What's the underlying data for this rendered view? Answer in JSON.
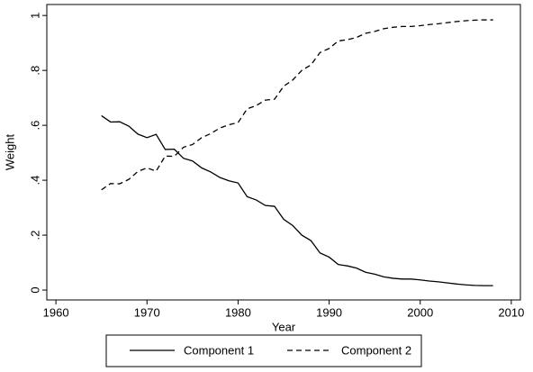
{
  "chart_data": {
    "type": "line",
    "x_label": "Year",
    "y_label": "Weight",
    "x": [
      1965,
      1966,
      1967,
      1968,
      1969,
      1970,
      1971,
      1972,
      1973,
      1974,
      1975,
      1976,
      1977,
      1978,
      1979,
      1980,
      1981,
      1982,
      1983,
      1984,
      1985,
      1986,
      1987,
      1988,
      1989,
      1990,
      1991,
      1992,
      1993,
      1994,
      1995,
      1996,
      1997,
      1998,
      1999,
      2000,
      2001,
      2002,
      2003,
      2004,
      2005,
      2006,
      2007,
      2008
    ],
    "series": [
      {
        "name": "Component 1",
        "color": "#000000",
        "dash": "solid",
        "values": [
          0.635,
          0.612,
          0.613,
          0.597,
          0.568,
          0.555,
          0.567,
          0.512,
          0.513,
          0.48,
          0.47,
          0.445,
          0.43,
          0.41,
          0.398,
          0.39,
          0.34,
          0.328,
          0.308,
          0.305,
          0.258,
          0.235,
          0.2,
          0.18,
          0.135,
          0.12,
          0.093,
          0.088,
          0.08,
          0.065,
          0.058,
          0.048,
          0.043,
          0.04,
          0.04,
          0.037,
          0.033,
          0.03,
          0.026,
          0.022,
          0.019,
          0.017,
          0.016,
          0.016
        ]
      },
      {
        "name": "Component 2",
        "color": "#000000",
        "dash": "dashed",
        "values": [
          0.365,
          0.388,
          0.387,
          0.403,
          0.432,
          0.445,
          0.433,
          0.488,
          0.487,
          0.52,
          0.53,
          0.555,
          0.57,
          0.59,
          0.602,
          0.61,
          0.66,
          0.672,
          0.692,
          0.695,
          0.742,
          0.765,
          0.8,
          0.82,
          0.865,
          0.88,
          0.907,
          0.912,
          0.92,
          0.935,
          0.942,
          0.952,
          0.957,
          0.96,
          0.96,
          0.963,
          0.967,
          0.97,
          0.974,
          0.978,
          0.981,
          0.983,
          0.984,
          0.984
        ]
      }
    ],
    "xlim": [
      1959,
      2011
    ],
    "xticks": [
      1960,
      1970,
      1980,
      1990,
      2000,
      2010
    ],
    "ylim": [
      -0.036,
      1.04
    ],
    "yticks": [
      0,
      {
        "value": 0.2,
        "label": ".2"
      },
      {
        "value": 0.4,
        "label": ".4"
      },
      {
        "value": 0.6,
        "label": ".6"
      },
      {
        "value": 0.8,
        "label": ".8"
      },
      1
    ],
    "legend": "bottom"
  }
}
